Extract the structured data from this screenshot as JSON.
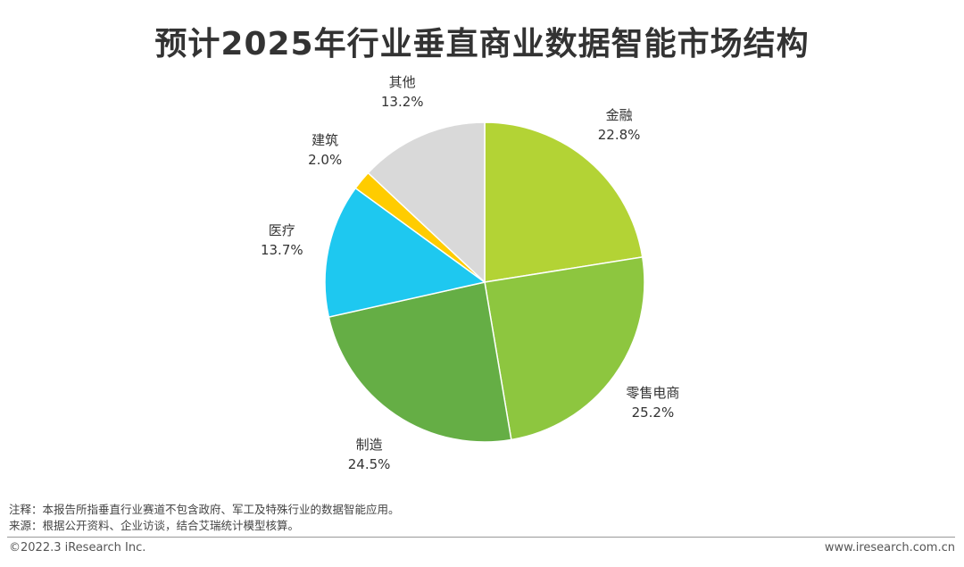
{
  "page": {
    "title": "预计2025年行业垂直商业数据智能市场结构",
    "notes": [
      "注释：本报告所指垂直行业赛道不包含政府、军工及特殊行业的数据智能应用。",
      "来源：根据公开资料、企业访谈，结合艾瑞统计模型核算。"
    ],
    "footer_left": "©2022.3 iResearch Inc.",
    "footer_right": "www.iresearch.com.cn"
  },
  "chart_data": {
    "type": "pie",
    "title": "预计2025年行业垂直商业数据智能市场结构",
    "slices": [
      {
        "name": "金融",
        "value": 22.8,
        "label": "22.8%",
        "color": "#B3D335"
      },
      {
        "name": "零售电商",
        "value": 25.2,
        "label": "25.2%",
        "color": "#8DC63F"
      },
      {
        "name": "制造",
        "value": 24.5,
        "label": "24.5%",
        "color": "#65AE45"
      },
      {
        "name": "医疗",
        "value": 13.7,
        "label": "13.7%",
        "color": "#1EC8F0"
      },
      {
        "name": "建筑",
        "value": 2.0,
        "label": "2.0%",
        "color": "#FFCC00"
      },
      {
        "name": "其他",
        "value": 13.2,
        "label": "13.2%",
        "color": "#D9D9D9"
      }
    ],
    "start": "12 o'clock",
    "direction": "clockwise",
    "legend": "none (labels beside slices)"
  }
}
